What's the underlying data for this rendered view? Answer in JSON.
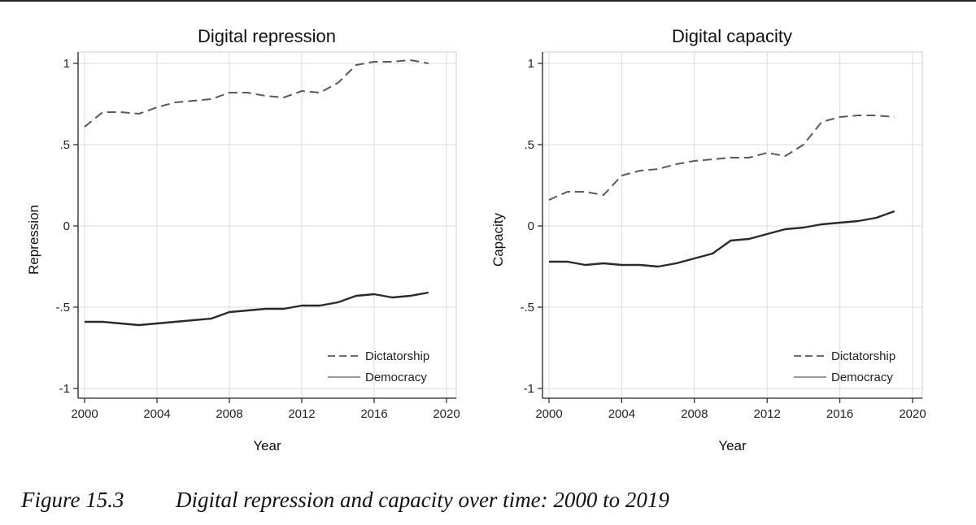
{
  "caption": {
    "number": "Figure 15.3",
    "text": "Digital repression and capacity over time: 2000 to 2019"
  },
  "chart_data": [
    {
      "type": "line",
      "title": "Digital repression",
      "xlabel": "Year",
      "ylabel": "Repression",
      "xlim": [
        2000,
        2020
      ],
      "ylim": [
        -1,
        1
      ],
      "xticks": [
        2000,
        2004,
        2008,
        2012,
        2016,
        2020
      ],
      "yticks": [
        1,
        0.5,
        0,
        -0.5,
        -1
      ],
      "ytick_labels": [
        "1",
        ".5",
        "0",
        "-.5",
        "-1"
      ],
      "grid": true,
      "legend_position": "bottom-right",
      "x": [
        2000,
        2001,
        2002,
        2003,
        2004,
        2005,
        2006,
        2007,
        2008,
        2009,
        2010,
        2011,
        2012,
        2013,
        2014,
        2015,
        2016,
        2017,
        2018,
        2019
      ],
      "series": [
        {
          "name": "Dictatorship",
          "style": "dashed",
          "values": [
            0.61,
            0.7,
            0.7,
            0.69,
            0.73,
            0.76,
            0.77,
            0.78,
            0.82,
            0.82,
            0.8,
            0.79,
            0.83,
            0.82,
            0.88,
            0.99,
            1.01,
            1.01,
            1.02,
            1.0
          ]
        },
        {
          "name": "Democracy",
          "style": "solid",
          "values": [
            -0.59,
            -0.59,
            -0.6,
            -0.61,
            -0.6,
            -0.59,
            -0.58,
            -0.57,
            -0.53,
            -0.52,
            -0.51,
            -0.51,
            -0.49,
            -0.49,
            -0.47,
            -0.43,
            -0.42,
            -0.44,
            -0.43,
            -0.41
          ]
        }
      ]
    },
    {
      "type": "line",
      "title": "Digital capacity",
      "xlabel": "Year",
      "ylabel": "Capacity",
      "xlim": [
        2000,
        2020
      ],
      "ylim": [
        -1,
        1
      ],
      "xticks": [
        2000,
        2004,
        2008,
        2012,
        2016,
        2020
      ],
      "yticks": [
        1,
        0.5,
        0,
        -0.5,
        -1
      ],
      "ytick_labels": [
        "1",
        ".5",
        "0",
        "-.5",
        "-1"
      ],
      "grid": true,
      "legend_position": "bottom-right",
      "x": [
        2000,
        2001,
        2002,
        2003,
        2004,
        2005,
        2006,
        2007,
        2008,
        2009,
        2010,
        2011,
        2012,
        2013,
        2014,
        2015,
        2016,
        2017,
        2018,
        2019
      ],
      "series": [
        {
          "name": "Dictatorship",
          "style": "dashed",
          "values": [
            0.16,
            0.21,
            0.21,
            0.19,
            0.31,
            0.34,
            0.35,
            0.38,
            0.4,
            0.41,
            0.42,
            0.42,
            0.45,
            0.43,
            0.5,
            0.64,
            0.67,
            0.68,
            0.68,
            0.67
          ]
        },
        {
          "name": "Democracy",
          "style": "solid",
          "values": [
            -0.22,
            -0.22,
            -0.24,
            -0.23,
            -0.24,
            -0.24,
            -0.25,
            -0.23,
            -0.2,
            -0.17,
            -0.09,
            -0.08,
            -0.05,
            -0.02,
            -0.01,
            0.01,
            0.02,
            0.03,
            0.05,
            0.09
          ]
        }
      ]
    }
  ]
}
